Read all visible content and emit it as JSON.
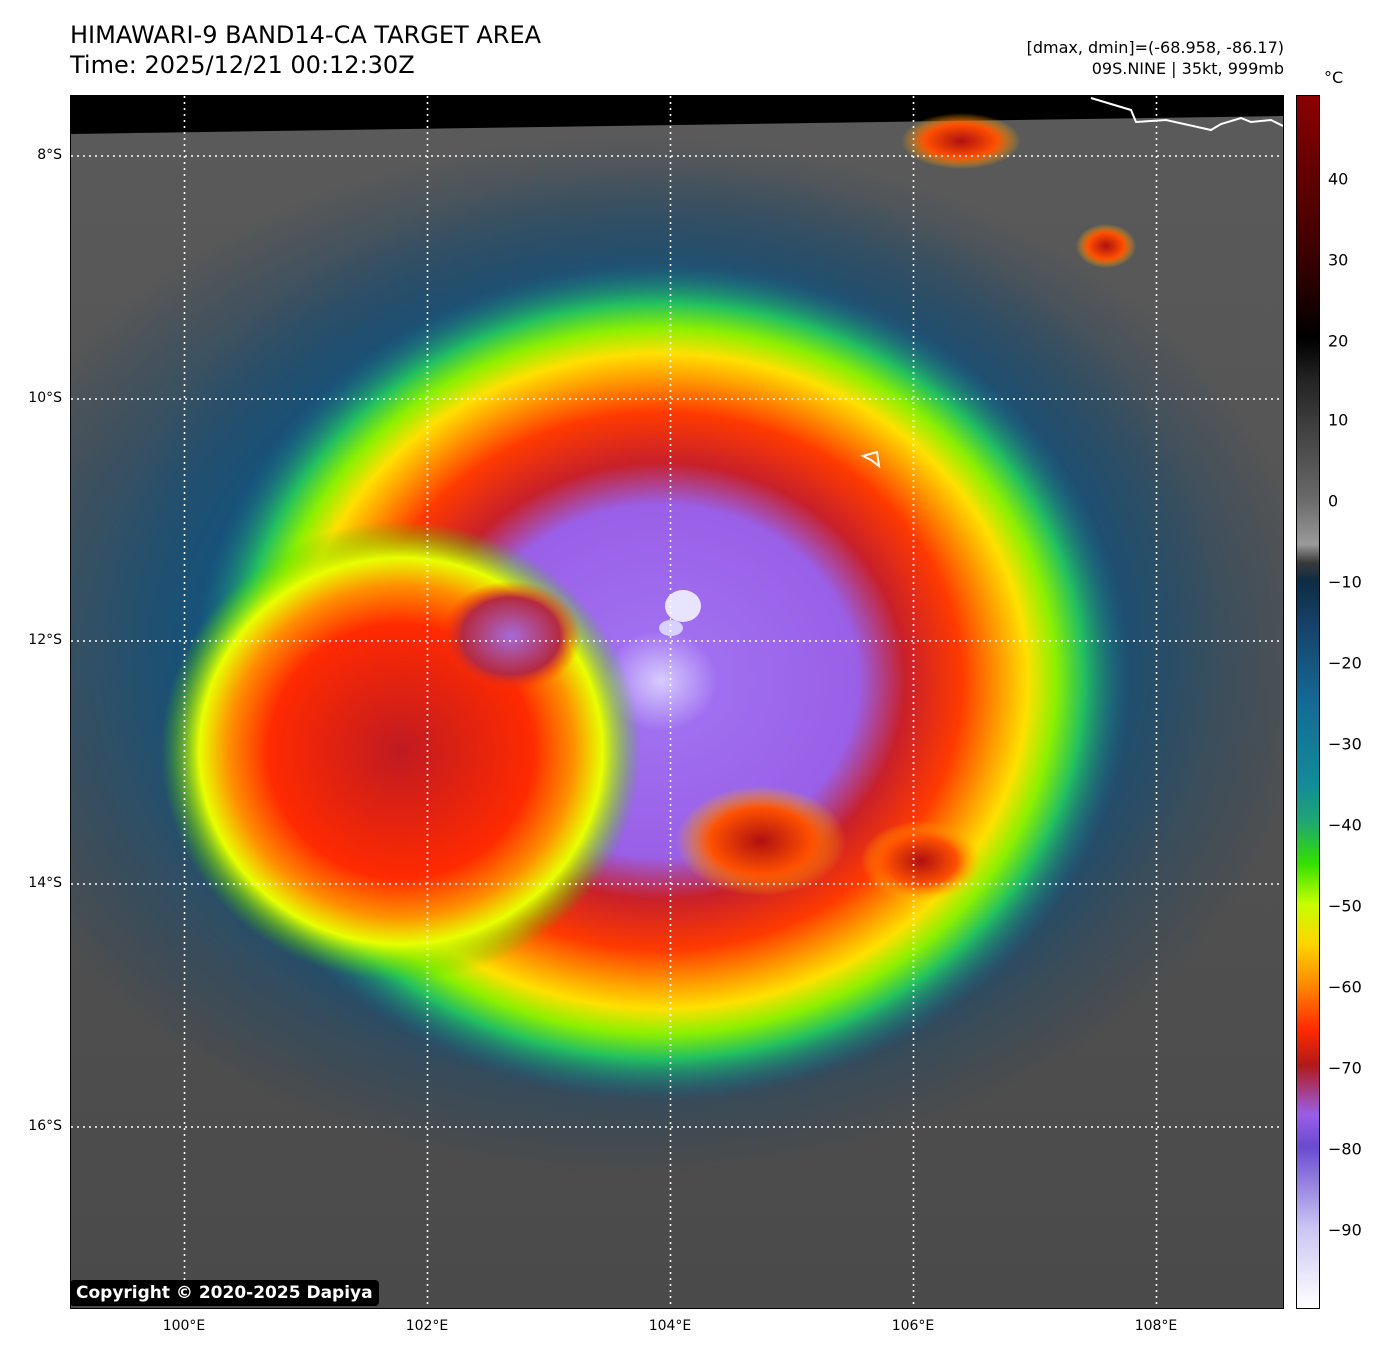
{
  "title": {
    "line1": "HIMAWARI-9 BAND14-CA TARGET AREA",
    "line2": "Time: 2025/12/21 00:12:30Z"
  },
  "info": {
    "line1": "[dmax, dmin]=(-68.958, -86.17)",
    "line2": "09S.NINE | 35kt, 999mb"
  },
  "copyright": "Copyright © 2020-2025 Dapiya",
  "lat_labels": [
    "8°S",
    "10°S",
    "12°S",
    "14°S",
    "16°S"
  ],
  "lon_labels": [
    "100°E",
    "102°E",
    "104°E",
    "106°E",
    "108°E"
  ],
  "colorbar": {
    "unit": "°C",
    "ticks": [
      "40",
      "30",
      "20",
      "10",
      "0",
      "−10",
      "−20",
      "−30",
      "−40",
      "−50",
      "−60",
      "−70",
      "−80",
      "−90"
    ],
    "range": [
      -100,
      50
    ]
  },
  "colors": {
    "cold_top": "#9a5fe6",
    "deep_convection": "#e81c0c",
    "cirrus_edge": "#ffd400",
    "moderate": "#33e000",
    "sea_surface": "#5e5e5e"
  }
}
